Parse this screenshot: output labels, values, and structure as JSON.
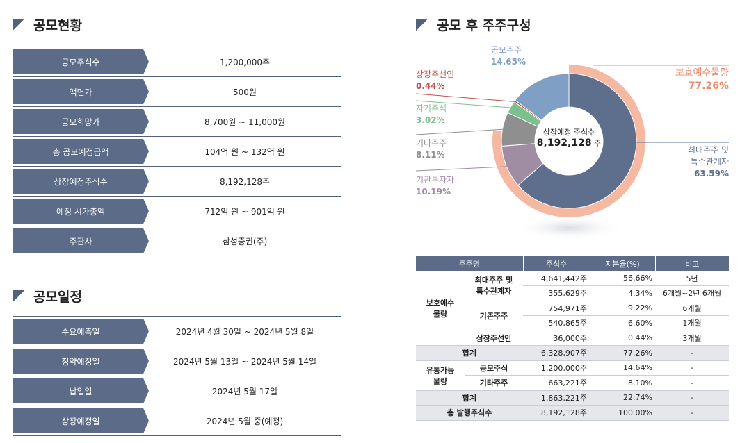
{
  "overview": {
    "title": "공모현황",
    "rows": [
      {
        "label": "공모주식수",
        "value": "1,200,000주"
      },
      {
        "label": "액면가",
        "value": "500원"
      },
      {
        "label": "공모희망가",
        "value": "8,700원 ~ 11,000원"
      },
      {
        "label": "총 공모예정금액",
        "value": "104억 원 ~ 132억 원"
      },
      {
        "label": "상장예정주식수",
        "value": "8,192,128주"
      },
      {
        "label": "예정 시가총액",
        "value": "712억 원 ~ 901억 원"
      },
      {
        "label": "주관사",
        "value": "삼성증권(주)"
      }
    ]
  },
  "schedule": {
    "title": "공모일정",
    "rows": [
      {
        "label": "수요예측일",
        "value": "2024년 4월 30일 ~ 2024년 5월 8일"
      },
      {
        "label": "청약예정일",
        "value": "2024년 5월 13일 ~ 2024년 5월 14일"
      },
      {
        "label": "납입일",
        "value": "2024년 5월 17일"
      },
      {
        "label": "상장예정일",
        "value": "2024년 5월 중(예정)"
      }
    ]
  },
  "composition": {
    "title": "공모 후 주주구성",
    "center_line1": "상장예정 주식수",
    "center_line2": "8,192,128",
    "center_unit": "주"
  },
  "chart_data": {
    "type": "pie",
    "title": "공모 후 주주구성",
    "center_label": "상장예정 주식수 8,192,128주",
    "slices": [
      {
        "name": "최대주주 및 특수관계자",
        "value": 63.59,
        "label": "63.59%",
        "color": "#5e6f8e"
      },
      {
        "name": "기관투자자",
        "value": 10.19,
        "label": "10.19%",
        "color": "#a08ca3"
      },
      {
        "name": "기타주주",
        "value": 8.11,
        "label": "8.11%",
        "color": "#8f8f8f"
      },
      {
        "name": "자기주식",
        "value": 3.02,
        "label": "3.02%",
        "color": "#7cc08f"
      },
      {
        "name": "상장주선인",
        "value": 0.44,
        "label": "0.44%",
        "color": "#c0504d"
      },
      {
        "name": "공모주주",
        "value": 14.65,
        "label": "14.65%",
        "color": "#7f9fc4"
      }
    ],
    "outer_ring": {
      "name": "보호예수물량",
      "value": 77.26,
      "label": "77.26%",
      "color": "#f4b9a0"
    }
  },
  "labels": {
    "major": [
      "최대주주 및",
      "특수관계자"
    ],
    "institution": "기관투자자",
    "other": "기타주주",
    "treasury": "자기주식",
    "underwriter": "상장주선인",
    "public": "공모주주",
    "lockup": "보호예수물량"
  },
  "table": {
    "headers": [
      "주주명",
      "주식수",
      "지분율(%)",
      "비고"
    ],
    "group1": "보호예수 물량",
    "group1_lines": [
      "보호예수",
      "물량"
    ],
    "major_lines": [
      "최대주주 및",
      "특수관계자"
    ],
    "existing": "기존주주",
    "underwriter": "상장주선인",
    "rows1": [
      {
        "shares": "4,641,442주",
        "pct": "56.66%",
        "note": "5년"
      },
      {
        "shares": "355,629주",
        "pct": "4.34%",
        "note": "6개월~2년 6개월"
      },
      {
        "shares": "754,971주",
        "pct": "9.22%",
        "note": "6개월"
      },
      {
        "shares": "540,865주",
        "pct": "6.60%",
        "note": "1개월"
      },
      {
        "shares": "36,000주",
        "pct": "0.44%",
        "note": "3개월"
      }
    ],
    "sum1": {
      "label": "합계",
      "shares": "6,328,907주",
      "pct": "77.26%",
      "note": "-"
    },
    "group2_lines": [
      "유통가능",
      "물량"
    ],
    "rows2": [
      {
        "name": "공모주식",
        "shares": "1,200,000주",
        "pct": "14.64%",
        "note": "-"
      },
      {
        "name": "기타주주",
        "shares": "663,221주",
        "pct": "8.10%",
        "note": "-"
      }
    ],
    "sum2": {
      "label": "합계",
      "shares": "1,863,221주",
      "pct": "22.74%",
      "note": "-"
    },
    "total": {
      "label": "총 발행주식수",
      "shares": "8,192,128주",
      "pct": "100.00%",
      "note": "-"
    }
  }
}
